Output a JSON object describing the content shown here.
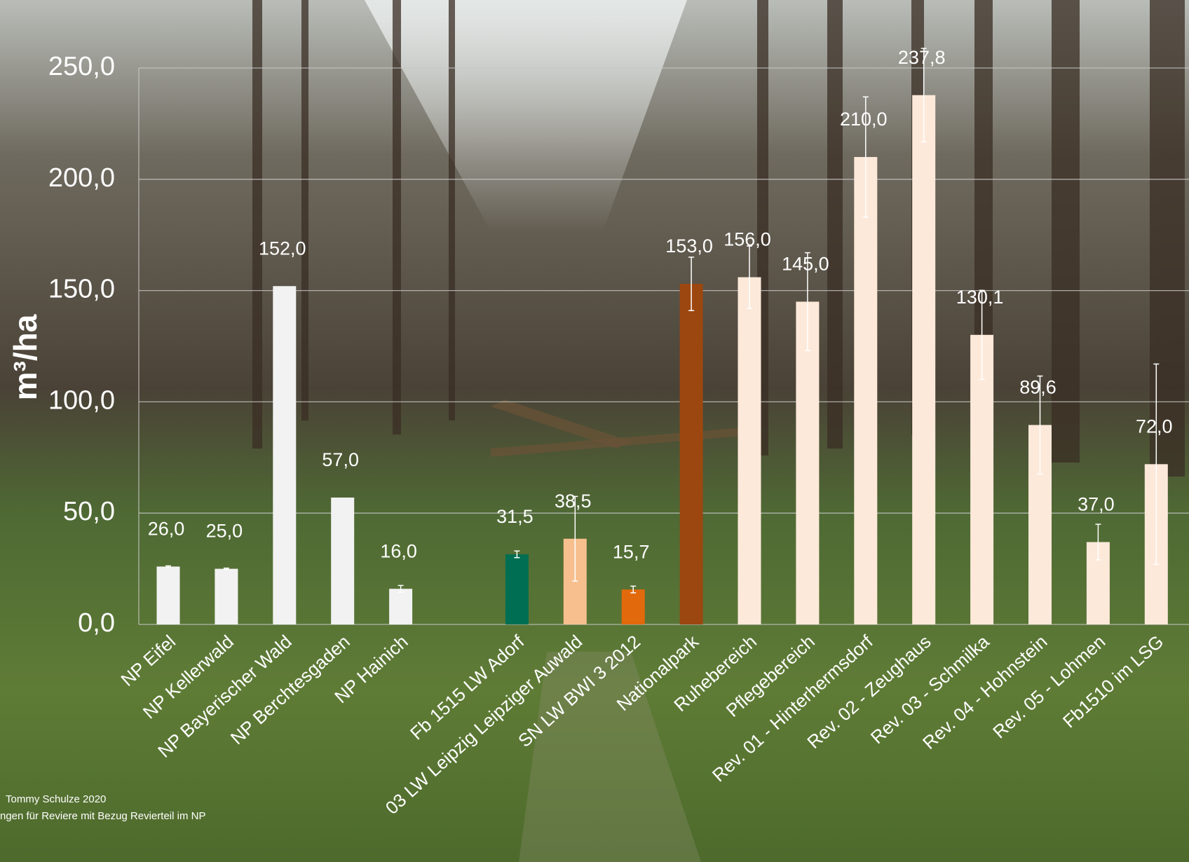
{
  "chart_data": {
    "type": "bar",
    "y_label": "m³/ha",
    "categories": [
      "NP Eifel",
      "NP Kellerwald",
      "NP Bayerischer Wald",
      "NP Berchtesgaden",
      "NP Hainich",
      null,
      "Fb 1515 LW Adorf",
      "03 LW Leipzig Leipziger Auwald",
      "SN LW BWI 3 2012",
      "Nationalpark",
      "Ruhebereich",
      "Pflegebereich",
      "Rev. 01 - Hinterhermsdorf",
      "Rev. 02 - Zeughaus",
      "Rev. 03 - Schmilka",
      "Rev. 04 - Hohnstein",
      "Rev. 05 - Lohmen",
      "Fb1510 im LSG"
    ],
    "values": [
      26.0,
      25.0,
      152.0,
      57.0,
      16.0,
      null,
      31.5,
      38.5,
      15.7,
      153.0,
      156.0,
      145.0,
      210.0,
      237.8,
      130.1,
      89.6,
      37.0,
      72.0
    ],
    "value_labels": [
      "26,0",
      "25,0",
      "152,0",
      "57,0",
      "16,0",
      null,
      "31,5",
      "38,5",
      "15,7",
      "153,0",
      "156,0",
      "145,0",
      "210,0",
      "237,8",
      "130,1",
      "89,6",
      "37,0",
      "72,0"
    ],
    "errors": [
      0.3,
      0.3,
      null,
      null,
      1.5,
      null,
      1.5,
      19,
      1.5,
      12,
      14,
      22,
      27,
      21,
      20,
      22,
      8,
      45
    ],
    "colors": [
      "#f2f2f2",
      "#f2f2f2",
      "#f2f2f2",
      "#f2f2f2",
      "#f2f2f2",
      null,
      "#006e52",
      "#f7bf8e",
      "#e2690c",
      "#9c4710",
      "#fde9da",
      "#fde9da",
      "#fde9da",
      "#fde9da",
      "#fde9da",
      "#fde9da",
      "#fde9da",
      "#fde9da"
    ],
    "ylim": [
      0,
      250
    ],
    "yticks": [
      {
        "value": 0,
        "label": "0,0"
      },
      {
        "value": 50,
        "label": "50,0"
      },
      {
        "value": 100,
        "label": "100,0"
      },
      {
        "value": 150,
        "label": "150,0"
      },
      {
        "value": 200,
        "label": "200,0"
      },
      {
        "value": 250,
        "label": "250,0"
      }
    ],
    "grid": true,
    "footnotes": [
      "Tommy Schulze 2020",
      "ngen für Reviere  mit  Bezug Revierteil im NP"
    ]
  }
}
